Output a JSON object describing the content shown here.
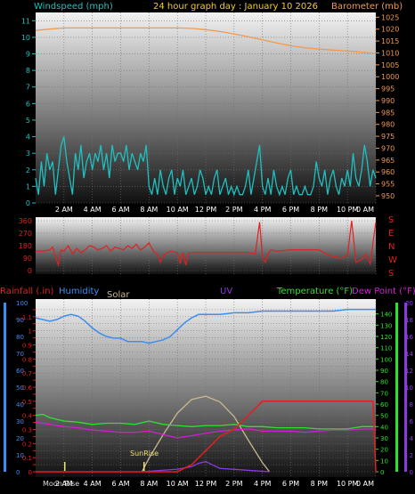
{
  "title": "24 hour graph day : January 10 2026",
  "colors": {
    "wind": "#20c0c0",
    "barometer": "#f09a50",
    "direction": "#e02020",
    "rain": "#e02020",
    "humidity": "#3a8ef0",
    "solar": "#c8b890",
    "uv": "#8a3ae0",
    "temperature": "#30e030",
    "dewpoint": "#d020d0",
    "grid": "#707070"
  },
  "x_ticks": [
    "2 AM",
    "4 AM",
    "6 AM",
    "8 AM",
    "10 AM",
    "12 PM",
    "2 PM",
    "4 PM",
    "6 PM",
    "8 PM",
    "10 PM",
    "0 AM"
  ],
  "chart_data": [
    {
      "type": "line",
      "labels": {
        "left": "Windspeed (mph)",
        "right": "Barometer (mb)"
      },
      "left_ticks": [
        "0",
        "1",
        "2",
        "3",
        "4",
        "5",
        "6",
        "7",
        "8",
        "9",
        "10",
        "11"
      ],
      "right_ticks": [
        "950",
        "955",
        "960",
        "965",
        "970",
        "975",
        "980",
        "985",
        "990",
        "995",
        "1000",
        "1005",
        "1010",
        "1015",
        "1020",
        "1025"
      ],
      "ylim_left": [
        0,
        11.5
      ],
      "ylim_right": [
        947,
        1027
      ],
      "x_hours": [
        0,
        24
      ],
      "series": [
        {
          "key": "windspeed",
          "axis": "left",
          "hours": [
            0,
            0.2,
            0.4,
            0.6,
            0.8,
            1.0,
            1.2,
            1.4,
            1.6,
            1.8,
            2.0,
            2.2,
            2.4,
            2.6,
            2.8,
            3.0,
            3.2,
            3.4,
            3.6,
            3.8,
            4.0,
            4.2,
            4.4,
            4.6,
            4.8,
            5.0,
            5.2,
            5.4,
            5.6,
            5.8,
            6.0,
            6.2,
            6.4,
            6.6,
            6.8,
            7.0,
            7.2,
            7.4,
            7.6,
            7.8,
            8.0,
            8.2,
            8.4,
            8.6,
            8.8,
            9.0,
            9.2,
            9.4,
            9.6,
            9.8,
            10.0,
            10.2,
            10.4,
            10.6,
            10.8,
            11.0,
            11.2,
            11.4,
            11.6,
            11.8,
            12.0,
            12.2,
            12.4,
            12.6,
            12.8,
            13.0,
            13.2,
            13.4,
            13.6,
            13.8,
            14.0,
            14.2,
            14.4,
            14.6,
            14.8,
            15.0,
            15.2,
            15.4,
            15.6,
            15.8,
            16.0,
            16.2,
            16.4,
            16.6,
            16.8,
            17.0,
            17.2,
            17.4,
            17.6,
            17.8,
            18.0,
            18.2,
            18.4,
            18.6,
            18.8,
            19.0,
            19.2,
            19.4,
            19.6,
            19.8,
            20.0,
            20.2,
            20.4,
            20.6,
            20.8,
            21.0,
            21.2,
            21.4,
            21.6,
            21.8,
            22.0,
            22.2,
            22.4,
            22.6,
            22.8,
            23.0,
            23.2,
            23.4,
            23.6,
            23.8,
            24.0
          ],
          "values": [
            1.5,
            0.5,
            2.5,
            1.0,
            3.0,
            2.0,
            2.5,
            0.5,
            2.0,
            3.5,
            4.0,
            2.5,
            1.5,
            0.5,
            3.0,
            2.0,
            3.5,
            1.5,
            2.5,
            3.0,
            2.0,
            3.0,
            2.5,
            3.5,
            2.0,
            3.0,
            1.5,
            3.5,
            2.5,
            3.0,
            3.0,
            2.5,
            3.5,
            2.0,
            3.0,
            2.5,
            2.0,
            3.0,
            2.5,
            3.5,
            1.0,
            0.5,
            1.5,
            0.5,
            2.0,
            1.0,
            0.5,
            1.5,
            2.0,
            0.5,
            1.5,
            1.0,
            2.0,
            0.5,
            1.0,
            1.5,
            0.5,
            1.0,
            2.0,
            1.5,
            0.5,
            1.0,
            0.5,
            1.5,
            2.0,
            0.5,
            1.0,
            1.5,
            0.5,
            1.0,
            0.5,
            1.0,
            0.5,
            0.5,
            1.0,
            2.0,
            0.5,
            1.5,
            2.5,
            3.5,
            1.0,
            0.5,
            1.5,
            0.5,
            2.0,
            1.0,
            0.5,
            1.0,
            0.5,
            1.5,
            2.0,
            0.5,
            1.0,
            0.5,
            0.5,
            1.0,
            0.5,
            0.5,
            1.0,
            2.5,
            1.5,
            1.0,
            2.0,
            0.5,
            1.5,
            2.0,
            1.0,
            0.5,
            1.5,
            1.0,
            2.0,
            1.0,
            3.0,
            1.5,
            1.0,
            2.0,
            3.5,
            2.5,
            1.0,
            2.0,
            1.5
          ]
        },
        {
          "key": "barometer",
          "axis": "right",
          "hours": [
            0,
            1,
            2,
            3,
            4,
            5,
            6,
            7,
            8,
            9,
            10,
            11,
            12,
            13,
            14,
            15,
            16,
            17,
            18,
            19,
            20,
            21,
            22,
            23,
            24
          ],
          "values": [
            1019.5,
            1020.0,
            1020.5,
            1020.5,
            1020.5,
            1020.5,
            1020.5,
            1020.5,
            1020.5,
            1020.5,
            1020.5,
            1020.3,
            1019.8,
            1019.0,
            1018.0,
            1016.8,
            1015.5,
            1014.2,
            1013.0,
            1012.2,
            1011.6,
            1011.2,
            1010.8,
            1010.3,
            1009.8
          ]
        }
      ]
    },
    {
      "type": "line",
      "labels": {
        "right": [
          "S",
          "E",
          "N",
          "W",
          "S"
        ]
      },
      "left_ticks": [
        "0",
        "90",
        "180",
        "270",
        "360"
      ],
      "ylim": [
        0,
        360
      ],
      "x_hours": [
        0,
        24
      ],
      "series": [
        {
          "key": "wind_direction",
          "hours": [
            0,
            0.5,
            1.0,
            1.2,
            1.4,
            1.6,
            1.8,
            2.0,
            2.3,
            2.6,
            2.9,
            3.2,
            3.5,
            3.8,
            4.1,
            4.4,
            4.7,
            5.0,
            5.3,
            5.6,
            5.9,
            6.2,
            6.5,
            6.8,
            7.1,
            7.4,
            7.7,
            8.0,
            8.2,
            8.4,
            8.6,
            8.8,
            9.0,
            9.5,
            10.0,
            10.2,
            10.4,
            10.6,
            10.8,
            11.0,
            11.5,
            12.0,
            13.0,
            14.0,
            15.0,
            15.5,
            15.8,
            16.0,
            16.2,
            16.4,
            16.6,
            17.0,
            18.0,
            19.0,
            20.0,
            20.5,
            21.0,
            21.5,
            22.0,
            22.3,
            22.6,
            23.0,
            23.3,
            23.6,
            24.0
          ],
          "values": [
            140,
            140,
            150,
            170,
            100,
            40,
            150,
            140,
            180,
            120,
            160,
            130,
            150,
            180,
            170,
            150,
            160,
            180,
            140,
            170,
            160,
            150,
            180,
            160,
            190,
            150,
            170,
            200,
            160,
            130,
            120,
            60,
            110,
            140,
            130,
            50,
            130,
            40,
            130,
            130,
            130,
            130,
            130,
            130,
            130,
            120,
            350,
            100,
            60,
            120,
            150,
            140,
            150,
            150,
            150,
            120,
            100,
            90,
            110,
            360,
            60,
            80,
            120,
            50,
            350
          ]
        }
      ]
    },
    {
      "type": "line",
      "labels": {
        "rain": "Rainfall (.in)",
        "humidity": "Humidity",
        "solar": "Solar",
        "uv": "UV",
        "temperature": "Temperature (°F)",
        "dewpoint": "Dew Point (°F)",
        "moon": "Moon Rise",
        "sunrise": "SunRise"
      },
      "rain_ticks": [
        "0",
        "0.05",
        "0.1",
        "0.15",
        "0.2",
        "0.25",
        "0.3",
        "0.35",
        "0.4",
        "0.45",
        "0.5",
        "0.55",
        "0.6",
        "0.65",
        "0.7",
        "0.75",
        "0.8",
        "0.85",
        "0.9",
        "0.95",
        "1",
        "1.05",
        "1.1",
        "1.15"
      ],
      "humidity_ticks": [
        "0",
        "10",
        "20",
        "30",
        "40",
        "50",
        "60",
        "70",
        "80",
        "90",
        "100"
      ],
      "temp_ticks": [
        "0",
        "10",
        "20",
        "30",
        "40",
        "50",
        "60",
        "70",
        "80",
        "90",
        "100",
        "110",
        "120",
        "130",
        "140"
      ],
      "uv_ticks": [
        "0",
        "1",
        "2",
        "3",
        "4",
        "5",
        "6",
        "7",
        "8",
        "9",
        "10",
        "11",
        "12",
        "13",
        "14",
        "15",
        "16",
        "17",
        "18",
        "19",
        "20"
      ],
      "ylim_rain": [
        0,
        1.2
      ],
      "ylim_humidity": [
        0,
        100
      ],
      "ylim_temp": [
        0,
        150
      ],
      "ylim_uv": [
        0,
        20
      ],
      "x_hours": [
        0,
        24
      ],
      "series": [
        {
          "key": "humidity",
          "axis": "humidity",
          "hours": [
            0,
            0.5,
            1,
            1.5,
            2,
            2.5,
            3,
            3.5,
            4,
            4.5,
            5,
            5.5,
            6,
            6.5,
            7,
            7.5,
            8,
            8.5,
            9,
            9.5,
            10,
            10.5,
            11,
            11.5,
            12,
            13,
            14,
            15,
            16,
            17,
            18,
            19,
            20,
            21,
            22,
            23,
            24
          ],
          "values": [
            91,
            90,
            89,
            90,
            92,
            93,
            92,
            89,
            85,
            82,
            80,
            79,
            79,
            77,
            77,
            77,
            76,
            77,
            78,
            80,
            84,
            88,
            91,
            93,
            93,
            93,
            94,
            94,
            95,
            95,
            95,
            95,
            95,
            95,
            96,
            96,
            96
          ]
        },
        {
          "key": "rainfall",
          "axis": "rain",
          "hours": [
            0,
            8,
            10,
            11,
            12,
            13,
            14,
            15,
            15.5,
            16,
            17,
            18,
            19,
            20,
            21,
            22,
            23,
            23.8,
            24
          ],
          "values": [
            0,
            0,
            0,
            0.05,
            0.15,
            0.25,
            0.3,
            0.4,
            0.45,
            0.5,
            0.5,
            0.5,
            0.5,
            0.5,
            0.5,
            0.5,
            0.5,
            0.5,
            0
          ]
        },
        {
          "key": "temperature",
          "axis": "temp",
          "hours": [
            0,
            0.5,
            1,
            2,
            3,
            4,
            5,
            6,
            7,
            8,
            9,
            10,
            11,
            12,
            13,
            14,
            15,
            16,
            17,
            18,
            19,
            20,
            21,
            22,
            23,
            24
          ],
          "values": [
            50,
            51,
            48,
            45,
            44,
            42,
            43,
            43,
            42,
            45,
            42,
            41,
            40,
            41,
            41,
            42,
            40,
            40,
            39,
            39,
            39,
            38,
            38,
            38,
            40,
            40
          ]
        },
        {
          "key": "dewpoint",
          "axis": "temp",
          "hours": [
            0,
            1,
            2,
            3,
            4,
            5,
            6,
            7,
            8,
            9,
            10,
            11,
            12,
            13,
            14,
            15,
            16,
            17,
            18,
            19,
            20,
            21,
            22,
            23,
            24
          ],
          "values": [
            44,
            42,
            40,
            39,
            37,
            36,
            35,
            35,
            36,
            33,
            30,
            32,
            34,
            36,
            37,
            38,
            36,
            36,
            36,
            35,
            36,
            37,
            37,
            38,
            38
          ]
        },
        {
          "key": "solar",
          "axis": "temp",
          "hours": [
            7.5,
            8,
            9,
            10,
            11,
            12,
            13,
            14,
            15,
            16,
            16.5
          ],
          "values": [
            0,
            12,
            33,
            52,
            64,
            67,
            62,
            49,
            28,
            8,
            0
          ]
        },
        {
          "key": "uv",
          "axis": "uv",
          "hours": [
            7.5,
            10,
            11,
            11.5,
            12,
            12.5,
            13,
            16.5
          ],
          "values": [
            0,
            0.3,
            0.6,
            1.0,
            1.2,
            0.8,
            0.4,
            0
          ]
        }
      ]
    }
  ]
}
